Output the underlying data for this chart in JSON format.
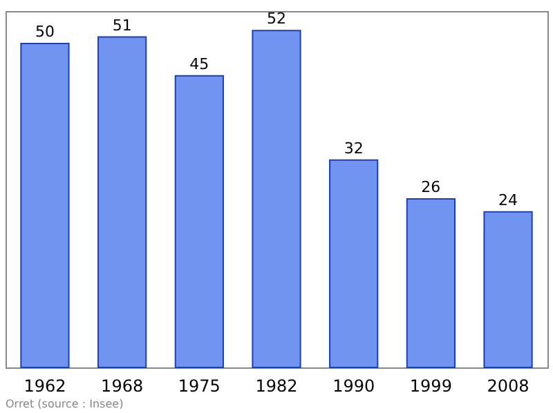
{
  "chart_data": {
    "type": "bar",
    "categories": [
      "1962",
      "1968",
      "1975",
      "1982",
      "1990",
      "1999",
      "2008"
    ],
    "values": [
      50,
      51,
      45,
      52,
      32,
      26,
      24
    ],
    "color": "#7094f0",
    "data_labels": true,
    "grid": false,
    "annotations": [
      "Orret    (source : Insee)"
    ]
  }
}
